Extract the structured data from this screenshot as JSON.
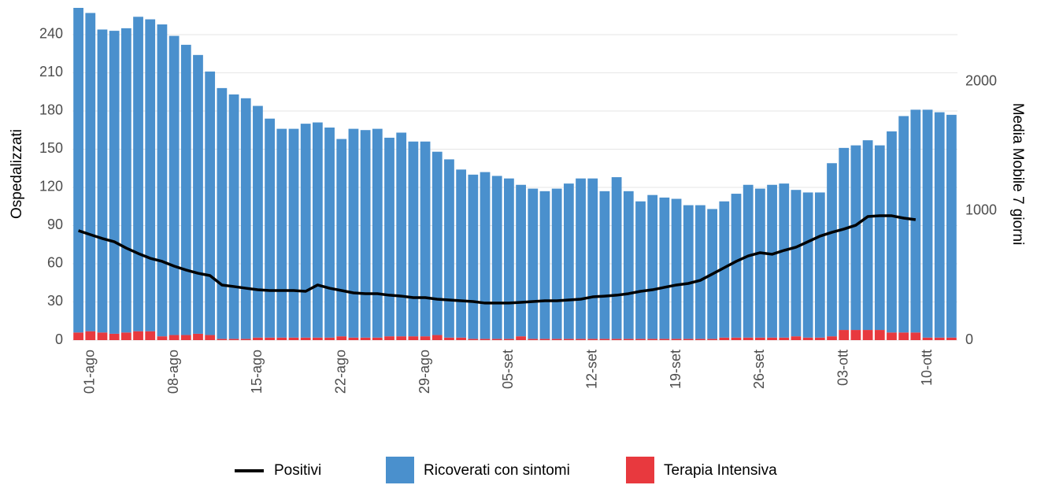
{
  "chart_data": {
    "type": "bar",
    "y_label": "Ospedalizzati",
    "y2_label": "Media Mobile 7 giorni",
    "categories": [
      null,
      "01-ago",
      null,
      null,
      null,
      null,
      null,
      null,
      "08-ago",
      null,
      null,
      null,
      null,
      null,
      null,
      "15-ago",
      null,
      null,
      null,
      null,
      null,
      null,
      "22-ago",
      null,
      null,
      null,
      null,
      null,
      null,
      "29-ago",
      null,
      null,
      null,
      null,
      null,
      null,
      "05-set",
      null,
      null,
      null,
      null,
      null,
      null,
      "12-set",
      null,
      null,
      null,
      null,
      null,
      null,
      "19-set",
      null,
      null,
      null,
      null,
      null,
      null,
      "26-set",
      null,
      null,
      null,
      null,
      null,
      null,
      "03-ott",
      null,
      null,
      null,
      null,
      null,
      null,
      "10-ott",
      null,
      null
    ],
    "series": [
      {
        "name": "Positivi",
        "type": "line",
        "axis": "y2",
        "color": "#000000",
        "values": [
          848,
          817,
          787,
          762,
          713,
          671,
          634,
          610,
          573,
          543,
          518,
          500,
          427,
          415,
          402,
          390,
          384,
          384,
          384,
          378,
          427,
          402,
          384,
          366,
          360,
          360,
          348,
          341,
          329,
          329,
          317,
          311,
          305,
          299,
          287,
          287,
          287,
          293,
          299,
          305,
          305,
          311,
          317,
          335,
          341,
          348,
          360,
          378,
          390,
          409,
          427,
          439,
          463,
          512,
          561,
          610,
          652,
          677,
          665,
          695,
          720,
          762,
          805,
          835,
          860,
          890,
          957,
          963,
          963,
          945,
          933,
          null,
          null,
          null
        ]
      },
      {
        "name": "Ricoverati con sintomi",
        "type": "bar",
        "color": "#4a90cd",
        "values": [
          255,
          250,
          238,
          238,
          239,
          247,
          245,
          245,
          235,
          228,
          219,
          207,
          197,
          192,
          189,
          182,
          172,
          164,
          164,
          168,
          169,
          165,
          155,
          164,
          163,
          164,
          156,
          160,
          153,
          153,
          144,
          140,
          132,
          129,
          131,
          128,
          126,
          119,
          118,
          116,
          118,
          122,
          126,
          126,
          116,
          127,
          116,
          108,
          113,
          111,
          110,
          105,
          105,
          102,
          107,
          113,
          120,
          117,
          120,
          121,
          115,
          114,
          114,
          136,
          143,
          145,
          149,
          145,
          158,
          170,
          175,
          179,
          177,
          175
        ]
      },
      {
        "name": "Terapia Intensiva",
        "type": "bar",
        "color": "#e8393e",
        "values": [
          6,
          7,
          6,
          5,
          6,
          7,
          7,
          3,
          4,
          4,
          5,
          4,
          1,
          1,
          1,
          2,
          2,
          2,
          2,
          2,
          2,
          2,
          3,
          2,
          2,
          2,
          3,
          3,
          3,
          3,
          4,
          2,
          2,
          1,
          1,
          1,
          1,
          3,
          1,
          1,
          1,
          1,
          1,
          1,
          1,
          1,
          1,
          1,
          1,
          1,
          1,
          1,
          1,
          1,
          2,
          2,
          2,
          2,
          2,
          2,
          3,
          2,
          2,
          3,
          8,
          8,
          8,
          8,
          6,
          6,
          6,
          2,
          2,
          2
        ]
      }
    ],
    "ylim": [
      0,
      261
    ],
    "yticks": [
      0,
      30,
      60,
      90,
      120,
      150,
      180,
      210,
      240
    ],
    "y2lim": [
      0,
      2573
    ],
    "y2ticks": [
      0,
      1000,
      2000
    ],
    "grid": true,
    "legend": "bottom"
  }
}
